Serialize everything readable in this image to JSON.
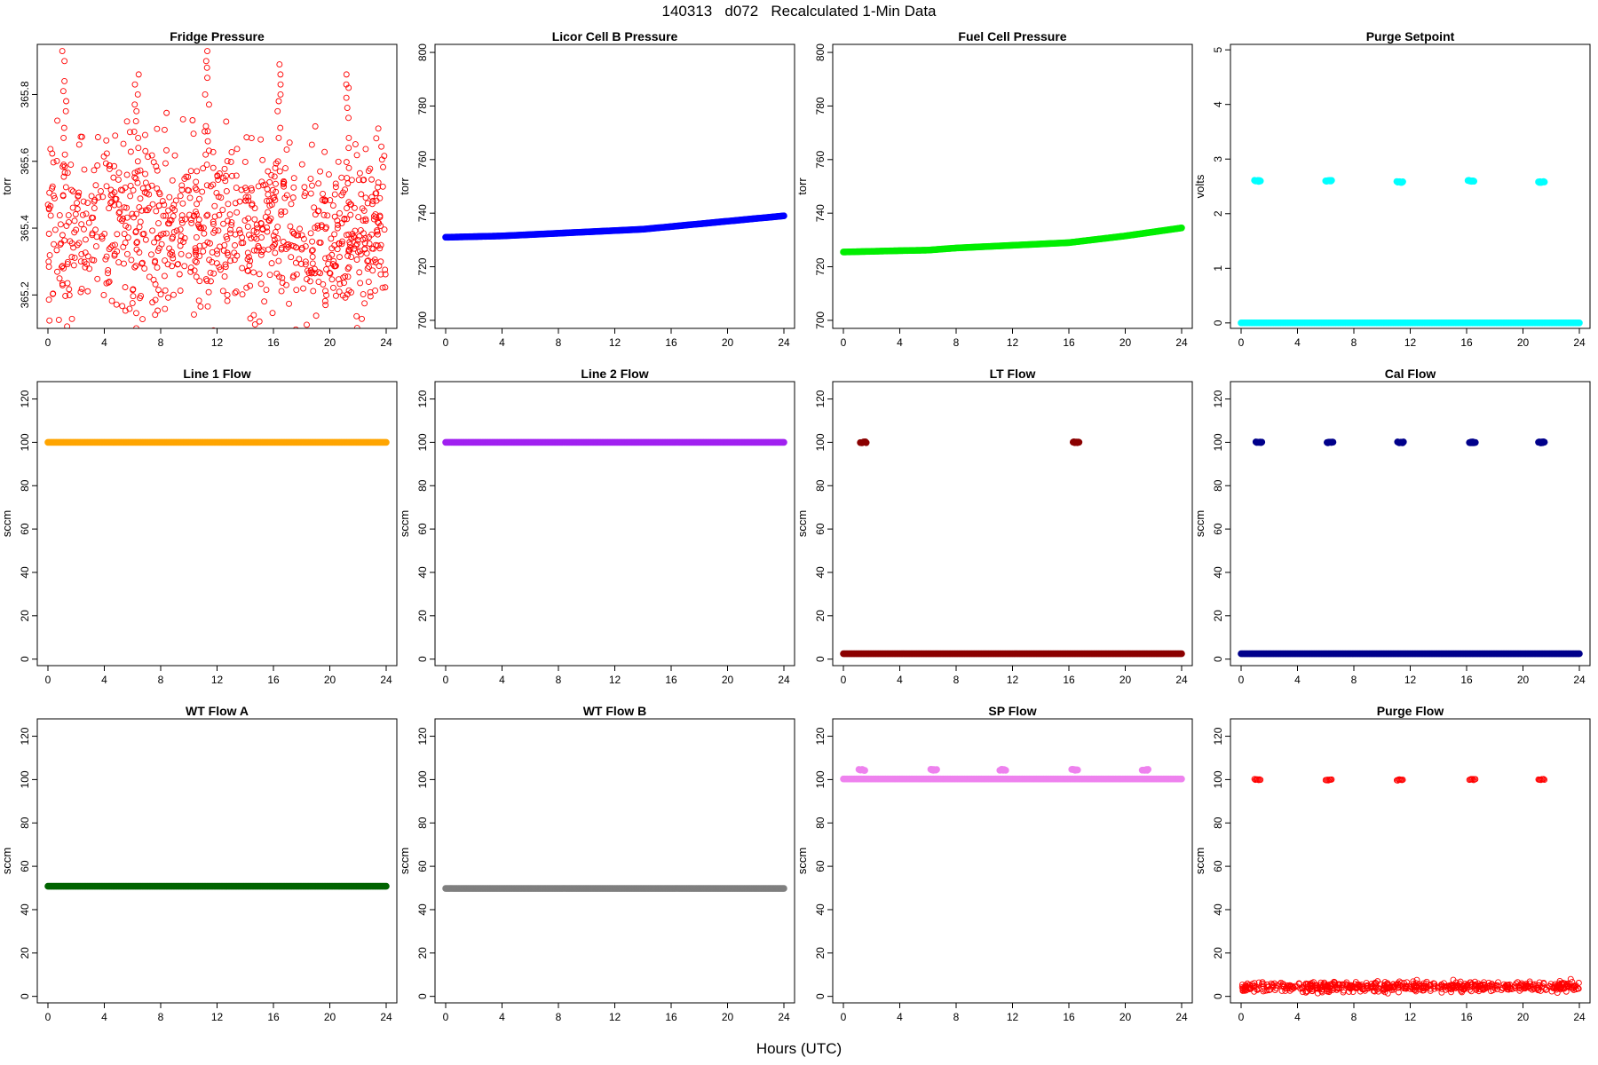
{
  "page": {
    "title": "140313   d072   Recalculated 1-Min Data",
    "xlabel": "Hours (UTC)"
  },
  "chart_data": [
    {
      "type": "scatter",
      "title": "Fridge Pressure",
      "ylabel": "torr",
      "xlim": [
        0,
        24
      ],
      "ylim": [
        365.1,
        365.95
      ],
      "x_ticks": [
        0,
        4,
        8,
        12,
        16,
        20,
        24
      ],
      "y_ticks": [
        365.2,
        365.4,
        365.6,
        365.8
      ],
      "color": "#ff0000",
      "marker": "open-circle",
      "series": [
        {
          "kind": "noise",
          "from": 0,
          "to": 24,
          "mean": 365.4,
          "spread": 0.13,
          "n": 900
        },
        {
          "kind": "spike",
          "x": 1.15,
          "values": [
            365.62,
            365.7,
            365.78,
            365.84,
            365.93
          ]
        },
        {
          "kind": "spike",
          "x": 6.3,
          "values": [
            365.6,
            365.67,
            365.75,
            365.8,
            365.86
          ]
        },
        {
          "kind": "spike",
          "x": 11.3,
          "values": [
            365.62,
            365.69,
            365.8,
            365.88,
            365.93
          ]
        },
        {
          "kind": "spike",
          "x": 16.4,
          "values": [
            365.6,
            365.7,
            365.78,
            365.83,
            365.89
          ]
        },
        {
          "kind": "spike",
          "x": 21.3,
          "values": [
            365.58,
            365.67,
            365.76,
            365.82,
            365.86
          ]
        }
      ]
    },
    {
      "type": "line",
      "title": "Licor Cell B Pressure",
      "ylabel": "torr",
      "xlim": [
        0,
        24
      ],
      "ylim": [
        697,
        803
      ],
      "x_ticks": [
        0,
        4,
        8,
        12,
        16,
        20,
        24
      ],
      "y_ticks": [
        700,
        720,
        740,
        760,
        780,
        800
      ],
      "color": "#0000ff",
      "series": [
        {
          "kind": "line",
          "x": [
            0,
            4,
            6,
            8,
            12,
            14,
            16,
            20,
            24
          ],
          "values": [
            731,
            731.5,
            732,
            732.5,
            733.5,
            734,
            735,
            737,
            739
          ]
        }
      ]
    },
    {
      "type": "line",
      "title": "Fuel Cell Pressure",
      "ylabel": "torr",
      "xlim": [
        0,
        24
      ],
      "ylim": [
        697,
        803
      ],
      "x_ticks": [
        0,
        4,
        8,
        12,
        16,
        20,
        24
      ],
      "y_ticks": [
        700,
        720,
        740,
        760,
        780,
        800
      ],
      "color": "#00ee00",
      "series": [
        {
          "kind": "line",
          "x": [
            0,
            4,
            6,
            8,
            12,
            14,
            16,
            20,
            24
          ],
          "values": [
            725.5,
            726,
            726.2,
            727,
            728,
            728.5,
            729,
            731.5,
            734.5
          ]
        }
      ]
    },
    {
      "type": "scatter",
      "title": "Purge Setpoint",
      "ylabel": "volts",
      "xlim": [
        0,
        24
      ],
      "ylim": [
        -0.1,
        5.1
      ],
      "x_ticks": [
        0,
        4,
        8,
        12,
        16,
        20,
        24
      ],
      "y_ticks": [
        0,
        1,
        2,
        3,
        4,
        5
      ],
      "color": "#00ffff",
      "series": [
        {
          "kind": "flat",
          "from": 0,
          "to": 24,
          "value": 0
        },
        {
          "kind": "cluster",
          "x": 1.15,
          "value": 2.6
        },
        {
          "kind": "cluster",
          "x": 6.2,
          "value": 2.6
        },
        {
          "kind": "cluster",
          "x": 11.25,
          "value": 2.58
        },
        {
          "kind": "cluster",
          "x": 16.3,
          "value": 2.6
        },
        {
          "kind": "cluster",
          "x": 21.3,
          "value": 2.58
        }
      ]
    },
    {
      "type": "line",
      "title": "Line 1 Flow",
      "ylabel": "sccm",
      "xlim": [
        0,
        24
      ],
      "ylim": [
        -3,
        128
      ],
      "x_ticks": [
        0,
        4,
        8,
        12,
        16,
        20,
        24
      ],
      "y_ticks": [
        0,
        20,
        40,
        60,
        80,
        100,
        120
      ],
      "color": "#ffa500",
      "series": [
        {
          "kind": "flat",
          "from": 0,
          "to": 24,
          "value": 100
        }
      ]
    },
    {
      "type": "line",
      "title": "Line 2 Flow",
      "ylabel": "sccm",
      "xlim": [
        0,
        24
      ],
      "ylim": [
        -3,
        128
      ],
      "x_ticks": [
        0,
        4,
        8,
        12,
        16,
        20,
        24
      ],
      "y_ticks": [
        0,
        20,
        40,
        60,
        80,
        100,
        120
      ],
      "color": "#a020f0",
      "series": [
        {
          "kind": "flat",
          "from": 0,
          "to": 24,
          "value": 100
        }
      ]
    },
    {
      "type": "scatter",
      "title": "LT Flow",
      "ylabel": "sccm",
      "xlim": [
        0,
        24
      ],
      "ylim": [
        -3,
        128
      ],
      "x_ticks": [
        0,
        4,
        8,
        12,
        16,
        20,
        24
      ],
      "y_ticks": [
        0,
        20,
        40,
        60,
        80,
        100,
        120
      ],
      "color": "#8b0000",
      "series": [
        {
          "kind": "flat",
          "from": 0,
          "to": 24,
          "value": 2.5
        },
        {
          "kind": "cluster",
          "x": 1.4,
          "value": 100
        },
        {
          "kind": "cluster",
          "x": 16.5,
          "value": 100
        }
      ]
    },
    {
      "type": "scatter",
      "title": "Cal Flow",
      "ylabel": "sccm",
      "xlim": [
        0,
        24
      ],
      "ylim": [
        -3,
        128
      ],
      "x_ticks": [
        0,
        4,
        8,
        12,
        16,
        20,
        24
      ],
      "y_ticks": [
        0,
        20,
        40,
        60,
        80,
        100,
        120
      ],
      "color": "#00008b",
      "series": [
        {
          "kind": "flat",
          "from": 0,
          "to": 24,
          "value": 2.5
        },
        {
          "kind": "cluster",
          "x": 1.25,
          "value": 100
        },
        {
          "kind": "cluster",
          "x": 6.3,
          "value": 100
        },
        {
          "kind": "cluster",
          "x": 11.3,
          "value": 100
        },
        {
          "kind": "cluster",
          "x": 16.4,
          "value": 100
        },
        {
          "kind": "cluster",
          "x": 21.3,
          "value": 100
        }
      ]
    },
    {
      "type": "line",
      "title": "WT Flow A",
      "ylabel": "sccm",
      "xlim": [
        0,
        24
      ],
      "ylim": [
        -3,
        128
      ],
      "x_ticks": [
        0,
        4,
        8,
        12,
        16,
        20,
        24
      ],
      "y_ticks": [
        0,
        20,
        40,
        60,
        80,
        100,
        120
      ],
      "color": "#006400",
      "series": [
        {
          "kind": "flat",
          "from": 0,
          "to": 24,
          "value": 50.8
        }
      ]
    },
    {
      "type": "line",
      "title": "WT Flow B",
      "ylabel": "sccm",
      "xlim": [
        0,
        24
      ],
      "ylim": [
        -3,
        128
      ],
      "x_ticks": [
        0,
        4,
        8,
        12,
        16,
        20,
        24
      ],
      "y_ticks": [
        0,
        20,
        40,
        60,
        80,
        100,
        120
      ],
      "color": "#7f7f7f",
      "series": [
        {
          "kind": "flat",
          "from": 0,
          "to": 24,
          "value": 49.8
        }
      ]
    },
    {
      "type": "scatter",
      "title": "SP Flow",
      "ylabel": "sccm",
      "xlim": [
        0,
        24
      ],
      "ylim": [
        -3,
        128
      ],
      "x_ticks": [
        0,
        4,
        8,
        12,
        16,
        20,
        24
      ],
      "y_ticks": [
        0,
        20,
        40,
        60,
        80,
        100,
        120
      ],
      "color": "#ee82ee",
      "series": [
        {
          "kind": "flat",
          "from": 0,
          "to": 24,
          "value": 100.3
        },
        {
          "kind": "cluster",
          "x": 1.3,
          "value": 104.5
        },
        {
          "kind": "cluster",
          "x": 6.4,
          "value": 104.5
        },
        {
          "kind": "cluster",
          "x": 11.3,
          "value": 104.5
        },
        {
          "kind": "cluster",
          "x": 16.4,
          "value": 104.5
        },
        {
          "kind": "cluster",
          "x": 21.4,
          "value": 104.5
        }
      ]
    },
    {
      "type": "scatter",
      "title": "Purge Flow",
      "ylabel": "sccm",
      "xlim": [
        0,
        24
      ],
      "ylim": [
        -3,
        128
      ],
      "x_ticks": [
        0,
        4,
        8,
        12,
        16,
        20,
        24
      ],
      "y_ticks": [
        0,
        20,
        40,
        60,
        80,
        100,
        120
      ],
      "color": "#ff0000",
      "marker": "open-circle",
      "series": [
        {
          "kind": "noise",
          "from": 0,
          "to": 24,
          "mean": 4.5,
          "spread": 1.2,
          "n": 600
        },
        {
          "kind": "cluster",
          "x": 1.15,
          "value": 100
        },
        {
          "kind": "cluster",
          "x": 6.2,
          "value": 99.8
        },
        {
          "kind": "cluster",
          "x": 11.25,
          "value": 99.8
        },
        {
          "kind": "cluster",
          "x": 16.4,
          "value": 100
        },
        {
          "kind": "cluster",
          "x": 21.3,
          "value": 100
        }
      ]
    }
  ]
}
